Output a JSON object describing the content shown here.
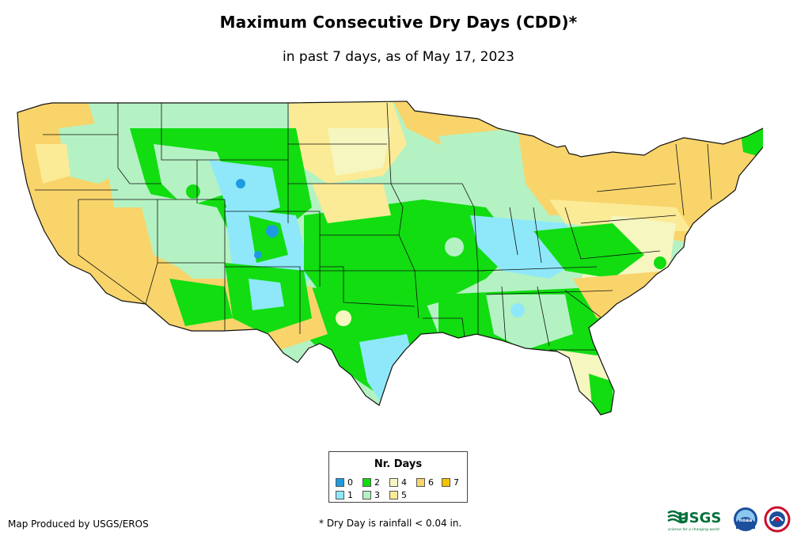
{
  "header": {
    "title": "Maximum Consecutive Dry Days (CDD)*",
    "subtitle": "in past 7 days, as of May 17, 2023"
  },
  "legend": {
    "title": "Nr. Days",
    "items": [
      {
        "label": "0",
        "color": "#1e9be0"
      },
      {
        "label": "1",
        "color": "#8ee8fa"
      },
      {
        "label": "2",
        "color": "#11dd11"
      },
      {
        "label": "3",
        "color": "#b4f2c3"
      },
      {
        "label": "4",
        "color": "#f6f6c0"
      },
      {
        "label": "5",
        "color": "#fbeb96"
      },
      {
        "label": "6",
        "color": "#f8d46b"
      },
      {
        "label": "7",
        "color": "#f7c200"
      }
    ]
  },
  "footer": {
    "credit": "Map Produced by USGS/EROS",
    "note": "* Dry Day is rainfall < 0.04 in."
  },
  "logos": {
    "usgs": "USGS",
    "usgs_tagline": "science for a changing world",
    "noaa": "noaa"
  }
}
